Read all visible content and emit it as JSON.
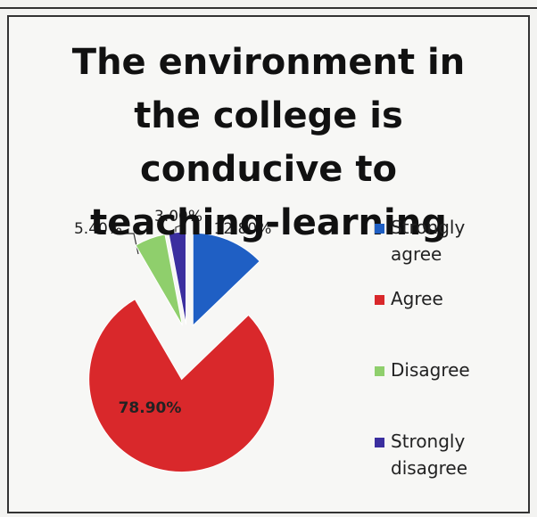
{
  "chart_data": {
    "type": "pie",
    "title": "The environment in the college is conducive to teaching-learning",
    "categories": [
      "Strongly agree",
      "Agree",
      "Disagree",
      "Strongly disagree"
    ],
    "values": [
      12.8,
      78.9,
      5.4,
      3.0
    ],
    "value_labels": [
      "12.80%",
      "78.90%",
      "5.40%",
      "3.00%"
    ],
    "colors": [
      "#1f5fc4",
      "#d9282b",
      "#8fcf6c",
      "#3b2f9f"
    ],
    "legend": "right"
  }
}
